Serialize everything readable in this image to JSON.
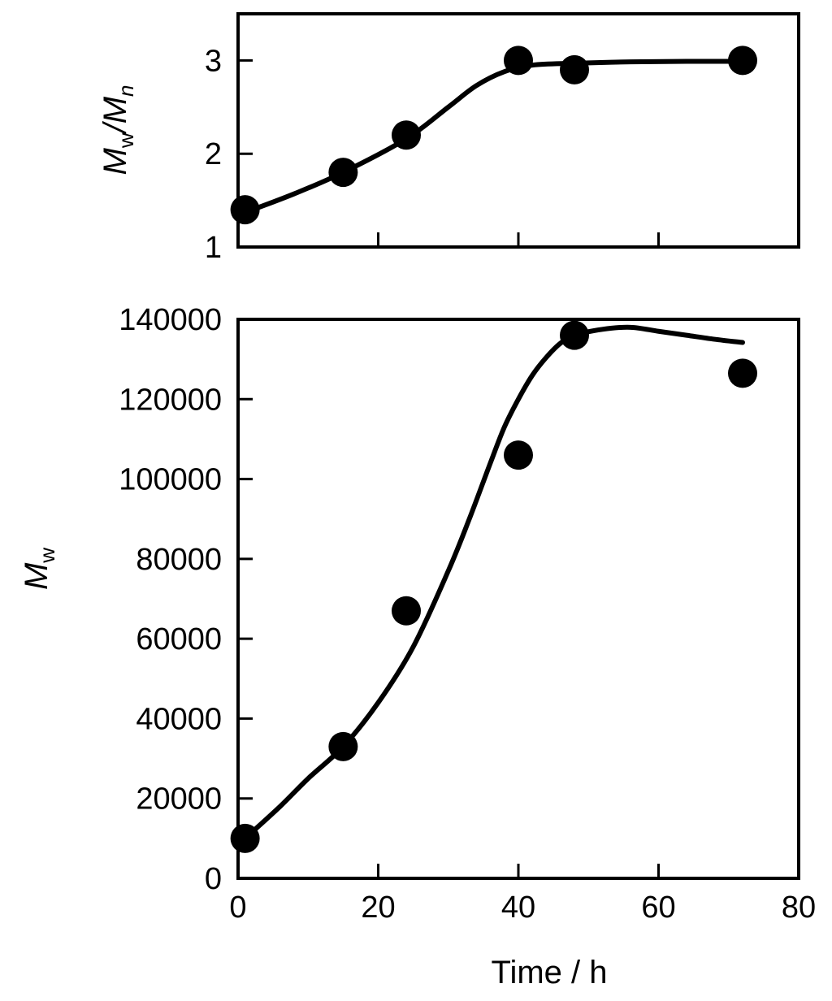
{
  "chart_data": [
    {
      "type": "scatter",
      "panel": "top",
      "ylabel": {
        "main": "M",
        "sub1": "w",
        "slash": "/M",
        "sub2": "n"
      },
      "ylim": [
        1,
        3.5
      ],
      "yticks": [
        "1",
        "2",
        "3"
      ],
      "ytick_values": [
        1,
        2,
        3
      ],
      "xlim": [
        0,
        80
      ],
      "xtick_values": [
        0,
        20,
        40,
        60,
        80
      ],
      "series": [
        {
          "points": [
            [
              1,
              1.4
            ],
            [
              15,
              1.8
            ],
            [
              24,
              2.2
            ],
            [
              40,
              3.0
            ],
            [
              48,
              2.9
            ],
            [
              72,
              3.0
            ]
          ],
          "fit": [
            [
              1,
              1.37
            ],
            [
              8,
              1.57
            ],
            [
              15,
              1.8
            ],
            [
              24,
              2.16
            ],
            [
              30,
              2.5
            ],
            [
              34,
              2.73
            ],
            [
              38,
              2.88
            ],
            [
              42,
              2.95
            ],
            [
              48,
              2.97
            ],
            [
              56,
              2.985
            ],
            [
              64,
              2.99
            ],
            [
              72,
              2.99
            ]
          ]
        }
      ]
    },
    {
      "type": "scatter",
      "panel": "bottom",
      "xlabel": "Time / h",
      "ylabel": {
        "main": "M",
        "sub1": "w"
      },
      "xlim": [
        0,
        80
      ],
      "xticks": [
        "0",
        "20",
        "40",
        "60",
        "80"
      ],
      "xtick_values": [
        0,
        20,
        40,
        60,
        80
      ],
      "ylim": [
        0,
        140000
      ],
      "yticks": [
        "0",
        "20000",
        "40000",
        "60000",
        "80000",
        "100000",
        "120000",
        "140000"
      ],
      "ytick_values": [
        0,
        20000,
        40000,
        60000,
        80000,
        100000,
        120000,
        140000
      ],
      "series": [
        {
          "points": [
            [
              1,
              10000
            ],
            [
              15,
              33000
            ],
            [
              24,
              67000
            ],
            [
              40,
              106000
            ],
            [
              48,
              136000
            ],
            [
              72,
              126500
            ]
          ],
          "fit": [
            [
              1,
              10000
            ],
            [
              6,
              18000
            ],
            [
              10,
              25000
            ],
            [
              15,
              33000
            ],
            [
              20,
              44000
            ],
            [
              25,
              58000
            ],
            [
              30,
              77000
            ],
            [
              33,
              90000
            ],
            [
              36,
              104000
            ],
            [
              38,
              113000
            ],
            [
              40,
              120000
            ],
            [
              42,
              126000
            ],
            [
              44,
              130500
            ],
            [
              46,
              134000
            ],
            [
              48,
              136000
            ],
            [
              52,
              137500
            ],
            [
              56,
              138000
            ],
            [
              60,
              137000
            ],
            [
              64,
              136000
            ],
            [
              68,
              135000
            ],
            [
              72,
              134200
            ]
          ]
        }
      ]
    }
  ]
}
